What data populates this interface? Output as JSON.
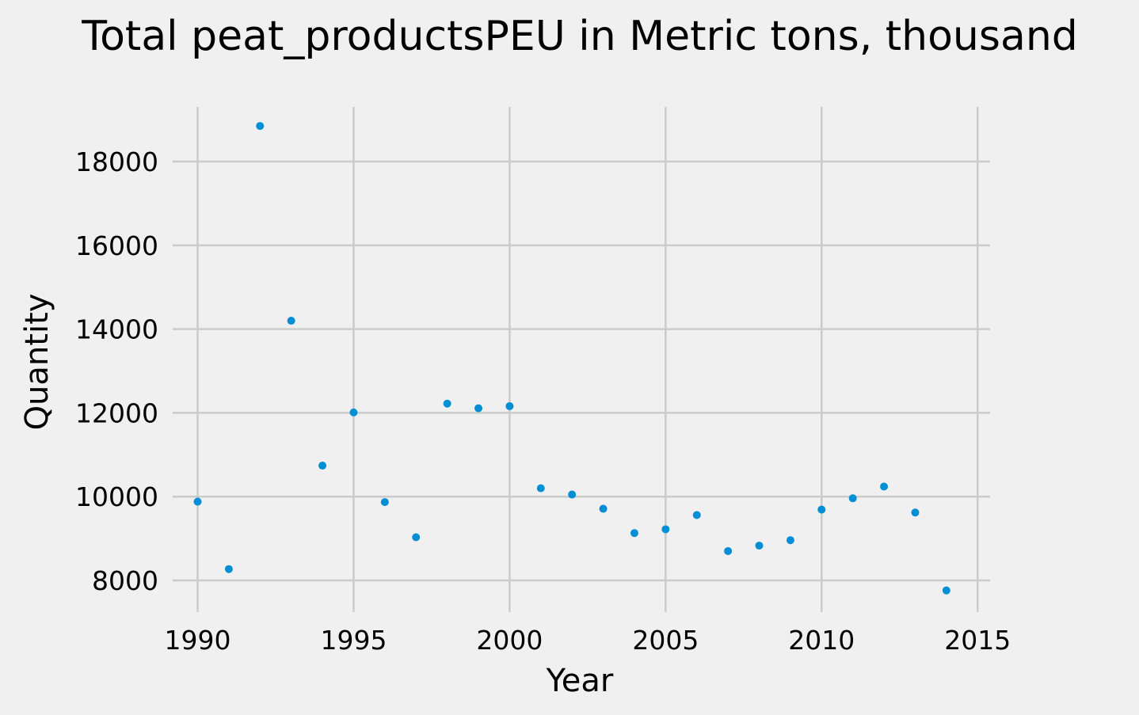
{
  "chart_data": {
    "type": "scatter",
    "title": "Total peat_productsPEU in Metric tons,  thousand",
    "xlabel": "Year",
    "ylabel": "Quantity",
    "xlim": [
      1989.2,
      2015.4
    ],
    "ylim": [
      7300,
      19400
    ],
    "xticks": [
      1990,
      1995,
      2000,
      2005,
      2010,
      2015
    ],
    "yticks": [
      8000,
      10000,
      12000,
      14000,
      16000,
      18000
    ],
    "grid": true,
    "color": "#008fd5",
    "background": "#f0f0f0",
    "x": [
      1990,
      1991,
      1992,
      1993,
      1994,
      1995,
      1996,
      1997,
      1998,
      1999,
      2000,
      2001,
      2002,
      2003,
      2004,
      2005,
      2006,
      2007,
      2008,
      2009,
      2010,
      2011,
      2012,
      2013,
      2014
    ],
    "y": [
      9880,
      8270,
      18850,
      14200,
      10740,
      12010,
      9870,
      9030,
      12220,
      12110,
      12160,
      10200,
      10050,
      9710,
      9130,
      9220,
      9560,
      8700,
      8830,
      8960,
      9690,
      9960,
      10240,
      9620,
      7760
    ]
  }
}
